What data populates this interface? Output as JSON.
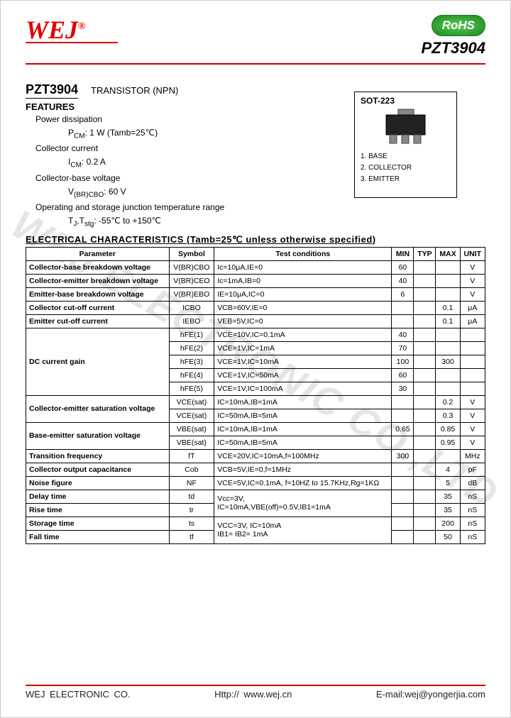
{
  "header": {
    "logo": "WEJ",
    "rohs": "RoHS",
    "part": "PZT3904"
  },
  "title": {
    "part": "PZT3904",
    "sub": "TRANSISTOR (NPN)"
  },
  "features": {
    "heading": "FEATURES",
    "rows": [
      {
        "l": "Power dissipation"
      },
      {
        "l": "P<sub>CM</sub>:   1      W (Tamb=25℃)",
        "i": 2
      },
      {
        "l": "Collector current"
      },
      {
        "l": "I<sub>CM</sub>:   0.2      A",
        "i": 2
      },
      {
        "l": "Collector-base voltage"
      },
      {
        "l": "V<sub>(BR)CBO</sub>:   60      V",
        "i": 2
      },
      {
        "l": "Operating and storage junction temperature range"
      },
      {
        "l": "T<sub>J</sub>,T<sub>stg</sub>:   -55℃ to +150℃",
        "i": 2
      }
    ]
  },
  "package": {
    "name": "SOT-223",
    "pins": [
      "1. BASE",
      "2. COLLECTOR",
      "3. EMITTER"
    ]
  },
  "elec": {
    "heading": "ELECTRICAL   CHARACTERISTICS (Tamb=25℃    unless   otherwise   specified)",
    "columns": [
      "Parameter",
      "Symbol",
      "Test   conditions",
      "MIN",
      "TYP",
      "MAX",
      "UNIT"
    ],
    "rows": [
      {
        "p": "Collector-base breakdown voltage",
        "s": "V(BR)CBO",
        "c": "Ic=10μA,IE=0",
        "min": "60",
        "typ": "",
        "max": "",
        "u": "V"
      },
      {
        "p": "Collector-emitter breakdown voltage",
        "s": "V(BR)CEO",
        "c": "Ic=1mA,IB=0",
        "min": "40",
        "typ": "",
        "max": "",
        "u": "V"
      },
      {
        "p": "Emitter-base breakdown voltage",
        "s": "V(BR)EBO",
        "c": "IE=10μA,IC=0",
        "min": "6",
        "typ": "",
        "max": "",
        "u": "V"
      },
      {
        "p": "Collector cut-off current",
        "s": "ICBO",
        "c": "VCB=60V,IE=0",
        "min": "",
        "typ": "",
        "max": "0.1",
        "u": "μA"
      },
      {
        "p": "Emitter cut-off current",
        "s": "IEBO",
        "c": "VEB=5V,IC=0",
        "min": "",
        "typ": "",
        "max": "0.1",
        "u": "μA"
      },
      {
        "p": "",
        "pr": 5,
        "ptext": "DC current gain",
        "s": "hFE(1)",
        "c": "VCE=10V,IC=0.1mA",
        "min": "40",
        "typ": "",
        "max": "",
        "u": ""
      },
      {
        "s": "hFE(2)",
        "c": "VCE=1V,IC=1mA",
        "min": "70",
        "typ": "",
        "max": "",
        "u": ""
      },
      {
        "s": "hFE(3)",
        "c": "VCE=1V,IC=10mA",
        "min": "100",
        "typ": "",
        "max": "300",
        "u": ""
      },
      {
        "s": "hFE(4)",
        "c": "VCE=1V,IC=50mA",
        "min": "60",
        "typ": "",
        "max": "",
        "u": ""
      },
      {
        "s": "hFE(5)",
        "c": "VCE=1V,IC=100mA",
        "min": "30",
        "typ": "",
        "max": "",
        "u": ""
      },
      {
        "p": "",
        "pr": 2,
        "ptext": "Collector-emitter saturation voltage",
        "s": "VCE(sat)",
        "c": "IC=10mA,IB=1mA",
        "min": "",
        "typ": "",
        "max": "0.2",
        "u": "V"
      },
      {
        "s": "VCE(sat)",
        "c": "IC=50mA,IB=5mA",
        "min": "",
        "typ": "",
        "max": "0.3",
        "u": "V"
      },
      {
        "p": "",
        "pr": 2,
        "ptext": "Base-emitter saturation voltage",
        "s": "VBE(sat)",
        "c": "IC=10mA,IB=1mA",
        "min": "0.65",
        "typ": "",
        "max": "0.85",
        "u": "V"
      },
      {
        "s": "VBE(sat)",
        "c": "IC=50mA,IB=5mA",
        "min": "",
        "typ": "",
        "max": "0.95",
        "u": "V"
      },
      {
        "p": "Transition frequency",
        "s": "fT",
        "c": "VCE=20V,IC=10mA,f=100MHz",
        "min": "300",
        "typ": "",
        "max": "",
        "u": "MHz"
      },
      {
        "p": "Collector output capacitance",
        "s": "Cob",
        "c": "VCB=5V,IE=0,f=1MHz",
        "min": "",
        "typ": "",
        "max": "4",
        "u": "pF"
      },
      {
        "p": "Noise figure",
        "s": "NF",
        "c": "VCE=5V,IC=0.1mA, f=10HZ to 15.7KHz,Rg=1KΩ",
        "min": "",
        "typ": "",
        "max": "5",
        "u": "dB"
      },
      {
        "p": "Delay time",
        "s": "td",
        "c": "Vcc=3V,",
        "cr": 2,
        "cext": "IC=10mA,VBE(off)=0.5V,IB1=1mA",
        "min": "",
        "typ": "",
        "max": "35",
        "u": "nS"
      },
      {
        "p": "Rise time",
        "s": "tr",
        "min": "",
        "typ": "",
        "max": "35",
        "u": "nS"
      },
      {
        "p": "Storage time",
        "s": "ts",
        "c": "VCC=3V, IC=10mA",
        "cr": 2,
        "cext": "IB1= IB2= 1mA",
        "min": "",
        "typ": "",
        "max": "200",
        "u": "nS"
      },
      {
        "p": "Fall time",
        "s": "tf",
        "min": "",
        "typ": "",
        "max": "50",
        "u": "nS"
      }
    ]
  },
  "footer": {
    "company": "WEJ  ELECTRONIC  CO.",
    "url": "Http:// www.wej.cn",
    "email": "E-mail:wej@yongerjia.com"
  },
  "watermark": "WEJ  ELECTRONIC  CO.,LTD"
}
